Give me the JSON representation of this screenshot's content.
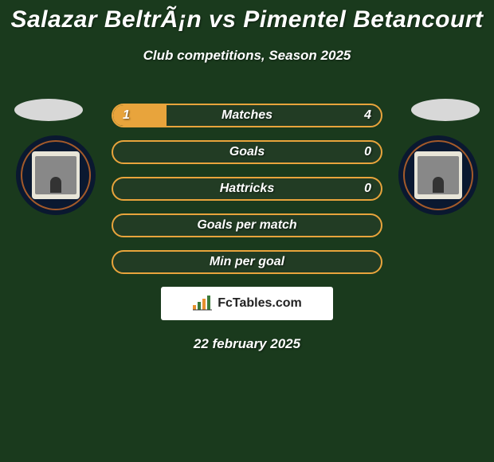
{
  "title": "Salazar BeltrÃ¡n vs Pimentel Betancourt",
  "subtitle": "Club competitions, Season 2025",
  "date": "22 february 2025",
  "logo_text": "FcTables.com",
  "colors": {
    "background": "#1a3a1d",
    "bar_bg": "#223c24",
    "bar_border": "#e8a43c",
    "bar_fill": "#e8a43c",
    "text": "#ffffff"
  },
  "bars": [
    {
      "label": "Matches",
      "left": "1",
      "right": "4",
      "fill_pct": 20
    },
    {
      "label": "Goals",
      "left": "",
      "right": "0",
      "fill_pct": 0
    },
    {
      "label": "Hattricks",
      "left": "",
      "right": "0",
      "fill_pct": 0
    },
    {
      "label": "Goals per match",
      "left": "",
      "right": "",
      "fill_pct": 0
    },
    {
      "label": "Min per goal",
      "left": "",
      "right": "",
      "fill_pct": 0
    }
  ]
}
